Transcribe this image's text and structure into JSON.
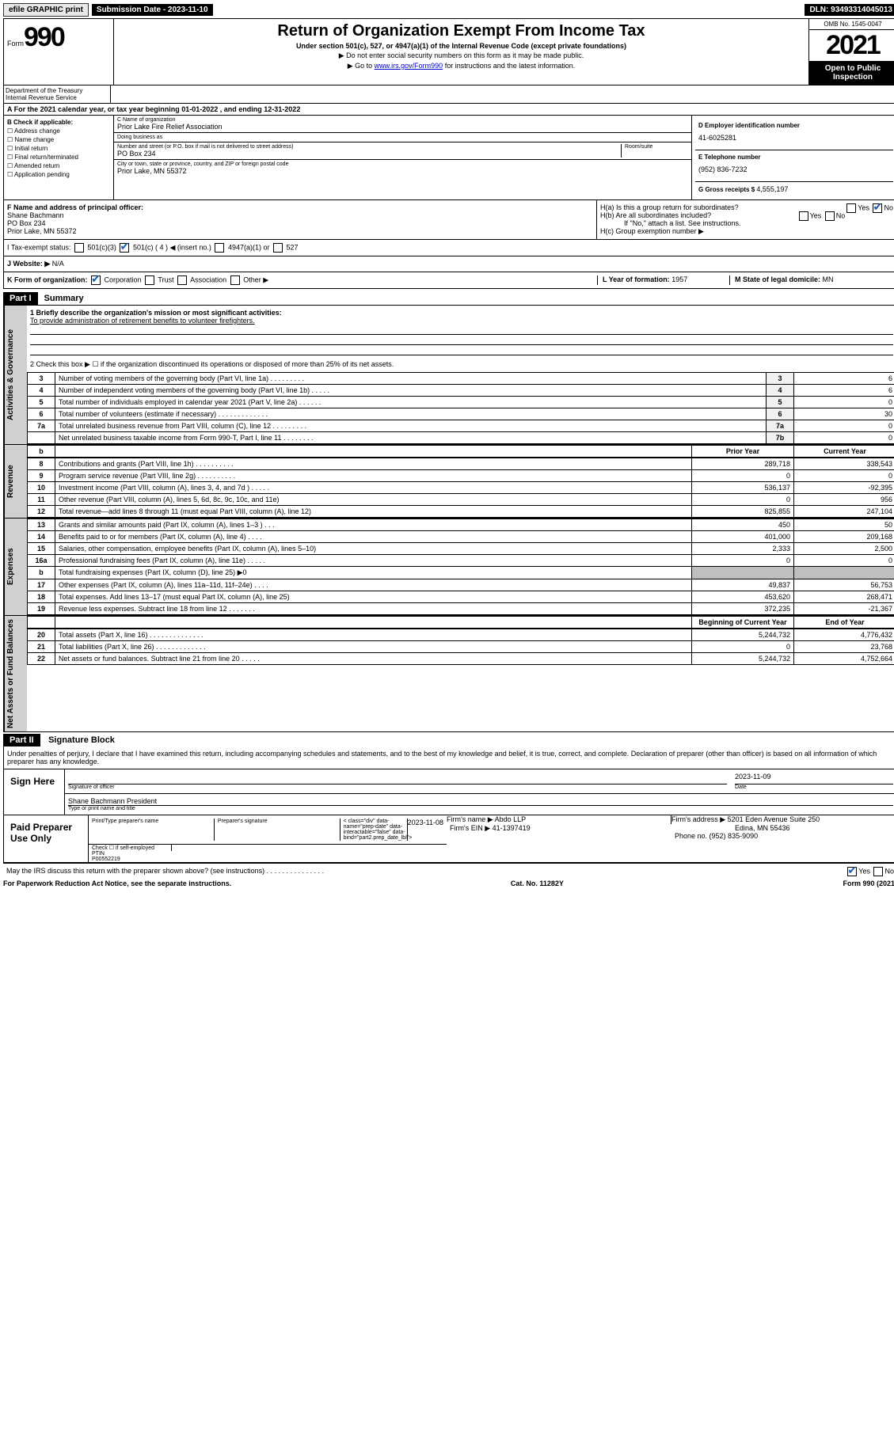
{
  "topbar": {
    "efile": "efile GRAPHIC print",
    "sub_label": "Submission Date - 2023-11-10",
    "dln": "DLN: 93493314045013"
  },
  "header": {
    "form_word": "Form",
    "form_num": "990",
    "title": "Return of Organization Exempt From Income Tax",
    "subtitle1": "Under section 501(c), 527, or 4947(a)(1) of the Internal Revenue Code (except private foundations)",
    "subtitle2": "▶ Do not enter social security numbers on this form as it may be made public.",
    "subtitle3_pre": "▶ Go to ",
    "subtitle3_link": "www.irs.gov/Form990",
    "subtitle3_post": " for instructions and the latest information.",
    "omb": "OMB No. 1545-0047",
    "year": "2021",
    "open": "Open to Public Inspection",
    "dept": "Department of the Treasury\nInternal Revenue Service"
  },
  "rowA": "A For the 2021 calendar year, or tax year beginning 01-01-2022   , and ending 12-31-2022",
  "colB": {
    "label": "B Check if applicable:",
    "items": [
      "Address change",
      "Name change",
      "Initial return",
      "Final return/terminated",
      "Amended return",
      "Application pending"
    ]
  },
  "colC": {
    "name_lbl": "C Name of organization",
    "name": "Prior Lake Fire Relief Association",
    "dba_lbl": "Doing business as",
    "dba": "",
    "street_lbl": "Number and street (or P.O. box if mail is not delivered to street address)",
    "room_lbl": "Room/suite",
    "street": "PO Box 234",
    "city_lbl": "City or town, state or province, country, and ZIP or foreign postal code",
    "city": "Prior Lake, MN  55372"
  },
  "colD": {
    "ein_lbl": "D Employer identification number",
    "ein": "41-6025281",
    "phone_lbl": "E Telephone number",
    "phone": "(952) 836-7232",
    "gross_lbl": "G Gross receipts $ ",
    "gross": "4,555,197"
  },
  "rowF": {
    "lbl": "F  Name and address of principal officer:",
    "name": "Shane Bachmann",
    "addr1": "PO Box 234",
    "addr2": "Prior Lake, MN  55372"
  },
  "rowH": {
    "ha_lbl": "H(a)  Is this a group return for subordinates?",
    "ha_yes": "Yes",
    "ha_no": "No",
    "hb_lbl": "H(b)  Are all subordinates included?",
    "hb_yes": "Yes",
    "hb_no": "No",
    "hb_note": "If \"No,\" attach a list. See instructions.",
    "hc_lbl": "H(c)  Group exemption number ▶"
  },
  "rowI": {
    "lbl": "I   Tax-exempt status:",
    "opts": [
      "501(c)(3)",
      "501(c) ( 4 ) ◀ (insert no.)",
      "4947(a)(1) or",
      "527"
    ]
  },
  "rowJ": {
    "lbl": "J   Website: ▶",
    "val": "N/A"
  },
  "rowK": {
    "lbl": "K Form of organization:",
    "opts": [
      "Corporation",
      "Trust",
      "Association",
      "Other ▶"
    ],
    "year_lbl": "L Year of formation: ",
    "year": "1957",
    "state_lbl": "M State of legal domicile: ",
    "state": "MN"
  },
  "part1": {
    "hdr": "Part I",
    "title": "Summary",
    "line1_lbl": "1  Briefly describe the organization's mission or most significant activities:",
    "line1_val": "To provide administration of retirement benefits to volunteer firefighters.",
    "line2": "2   Check this box ▶ ☐  if the organization discontinued its operations or disposed of more than 25% of its net assets.",
    "rows_ag": [
      {
        "n": "3",
        "t": "Number of voting members of the governing body (Part VI, line 1a)   .    .    .    .    .    .    .    .    .",
        "idx": "3",
        "v": "6"
      },
      {
        "n": "4",
        "t": "Number of independent voting members of the governing body (Part VI, line 1b)   .    .    .    .    .",
        "idx": "4",
        "v": "6"
      },
      {
        "n": "5",
        "t": "Total number of individuals employed in calendar year 2021 (Part V, line 2a)    .    .    .    .    .    .",
        "idx": "5",
        "v": "0"
      },
      {
        "n": "6",
        "t": "Total number of volunteers (estimate if necessary)   .    .    .    .    .    .    .    .    .    .    .    .    .",
        "idx": "6",
        "v": "30"
      },
      {
        "n": "7a",
        "t": "Total unrelated business revenue from Part VIII, column (C), line 12  .    .    .    .    .    .    .    .    .",
        "idx": "7a",
        "v": "0"
      },
      {
        "n": "",
        "t": "Net unrelated business taxable income from Form 990-T, Part I, line 11   .    .    .    .    .    .    .    .",
        "idx": "7b",
        "v": "0"
      }
    ],
    "col_hdr": {
      "b": "b",
      "prior": "Prior Year",
      "current": "Current Year"
    },
    "rows_rev": [
      {
        "n": "8",
        "t": "Contributions and grants (Part VIII, line 1h)   .    .    .    .    .    .    .    .    .    .",
        "p": "289,718",
        "c": "338,543"
      },
      {
        "n": "9",
        "t": "Program service revenue (Part VIII, line 2g)   .    .    .    .    .    .    .    .    .    .",
        "p": "0",
        "c": "0"
      },
      {
        "n": "10",
        "t": "Investment income (Part VIII, column (A), lines 3, 4, and 7d )    .    .    .    .    .",
        "p": "536,137",
        "c": "-92,395"
      },
      {
        "n": "11",
        "t": "Other revenue (Part VIII, column (A), lines 5, 6d, 8c, 9c, 10c, and 11e)",
        "p": "0",
        "c": "956"
      },
      {
        "n": "12",
        "t": "Total revenue—add lines 8 through 11 (must equal Part VIII, column (A), line 12)",
        "p": "825,855",
        "c": "247,104"
      }
    ],
    "rows_exp": [
      {
        "n": "13",
        "t": "Grants and similar amounts paid (Part IX, column (A), lines 1–3 )   .    .    .",
        "p": "450",
        "c": "50"
      },
      {
        "n": "14",
        "t": "Benefits paid to or for members (Part IX, column (A), line 4)    .    .    .    .",
        "p": "401,000",
        "c": "209,168"
      },
      {
        "n": "15",
        "t": "Salaries, other compensation, employee benefits (Part IX, column (A), lines 5–10)",
        "p": "2,333",
        "c": "2,500"
      },
      {
        "n": "16a",
        "t": "Professional fundraising fees (Part IX, column (A), line 11e)   .    .    .    .    .",
        "p": "0",
        "c": "0"
      },
      {
        "n": "b",
        "t": "Total fundraising expenses (Part IX, column (D), line 25) ▶0",
        "p": "",
        "c": "",
        "gray": true
      },
      {
        "n": "17",
        "t": "Other expenses (Part IX, column (A), lines 11a–11d, 11f–24e)   .    .    .    .",
        "p": "49,837",
        "c": "56,753"
      },
      {
        "n": "18",
        "t": "Total expenses. Add lines 13–17 (must equal Part IX, column (A), line 25)",
        "p": "453,620",
        "c": "268,471"
      },
      {
        "n": "19",
        "t": "Revenue less expenses. Subtract line 18 from line 12   .    .    .    .    .    .    .",
        "p": "372,235",
        "c": "-21,367"
      }
    ],
    "col_hdr2": {
      "prior": "Beginning of Current Year",
      "current": "End of Year"
    },
    "rows_net": [
      {
        "n": "20",
        "t": "Total assets (Part X, line 16)   .    .    .    .    .    .    .    .    .    .    .    .    .    .",
        "p": "5,244,732",
        "c": "4,776,432"
      },
      {
        "n": "21",
        "t": "Total liabilities (Part X, line 26)    .    .    .    .    .    .    .    .    .    .    .    .    .",
        "p": "0",
        "c": "23,768"
      },
      {
        "n": "22",
        "t": "Net assets or fund balances. Subtract line 21 from line 20    .    .    .    .    .",
        "p": "5,244,732",
        "c": "4,752,664"
      }
    ],
    "vtabs": {
      "ag": "Activities & Governance",
      "rev": "Revenue",
      "exp": "Expenses",
      "net": "Net Assets or Fund Balances"
    }
  },
  "part2": {
    "hdr": "Part II",
    "title": "Signature Block",
    "declare": "Under penalties of perjury, I declare that I have examined this return, including accompanying schedules and statements, and to the best of my knowledge and belief, it is true, correct, and complete. Declaration of preparer (other than officer) is based on all information of which preparer has any knowledge.",
    "sign_here": "Sign Here",
    "sig_officer": "Signature of officer",
    "sig_date": "2023-11-09",
    "sig_date_lbl": "Date",
    "sig_name": "Shane Bachmann  President",
    "sig_name_lbl": "Type or print name and title",
    "paid_prep": "Paid Preparer Use Only",
    "prep_name_lbl": "Print/Type preparer's name",
    "prep_sig_lbl": "Preparer's signature",
    "prep_date_lbl": "Date",
    "prep_date": "2023-11-08",
    "prep_check_lbl": "Check ☐ if self-employed",
    "ptin_lbl": "PTIN",
    "ptin": "P00552219",
    "firm_name_lbl": "Firm's name    ▶ ",
    "firm_name": "Abdo LLP",
    "firm_ein_lbl": "Firm's EIN ▶ ",
    "firm_ein": "41-1397419",
    "firm_addr_lbl": "Firm's address ▶ ",
    "firm_addr1": "5201 Eden Avenue Suite 250",
    "firm_addr2": "Edina, MN  55436",
    "firm_phone_lbl": "Phone no. ",
    "firm_phone": "(952) 835-9090",
    "discuss": "May the IRS discuss this return with the preparer shown above? (see instructions)   .    .    .    .    .    .    .    .    .    .    .    .    .    .    .",
    "discuss_yes": "Yes",
    "discuss_no": "No"
  },
  "footer": {
    "left": "For Paperwork Reduction Act Notice, see the separate instructions.",
    "mid": "Cat. No. 11282Y",
    "right": "Form 990 (2021)"
  }
}
